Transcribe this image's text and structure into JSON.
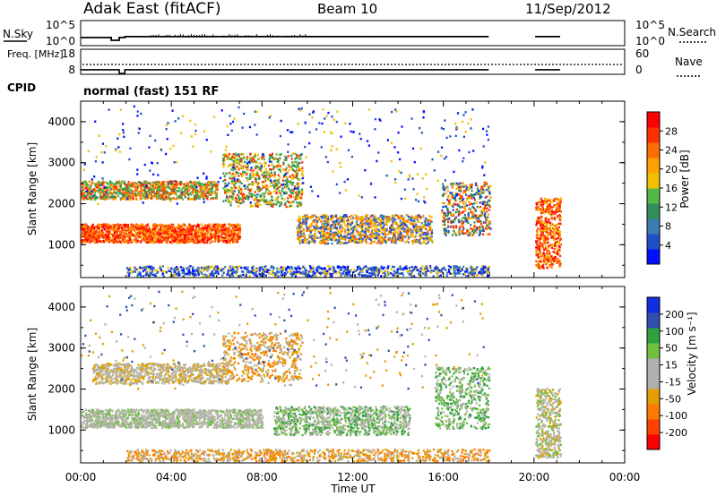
{
  "header": {
    "station": "Adak East (fitACF)",
    "beam": "Beam 10",
    "date": "11/Sep/2012",
    "cpid_label": "CPID",
    "cpid_value": "normal (fast) 151 RF"
  },
  "colors": {
    "power_scale": [
      "#0010ff",
      "#2050c8",
      "#3b7db0",
      "#2e8f5a",
      "#52b848",
      "#f0c000",
      "#ffa000",
      "#ff6c00",
      "#ff3000",
      "#ff0000"
    ],
    "velocity_scale": [
      "#ff0000",
      "#ff4000",
      "#ff7a00",
      "#e0a000",
      "#b0b0b0",
      "#b0b0b0",
      "#70c040",
      "#30a040",
      "#3050b0",
      "#1030e0"
    ],
    "ground_scatter": "#b4b4aa",
    "line": "#000000"
  },
  "chart_data": [
    {
      "type": "line",
      "panel": "N.Sky / N.Search noise",
      "left_label": "N.Sky",
      "right_label": "N.Search",
      "left_ticks": [
        "10^5",
        "10^0"
      ],
      "right_ticks": [
        "10^5",
        "10^0"
      ],
      "x_unit": "hours UT",
      "segments": [
        {
          "x": [
            0.0,
            1.35,
            1.35,
            1.7,
            1.7,
            1.95,
            1.95,
            18.0
          ],
          "y": [
            1.2,
            1.2,
            0.3,
            0.3,
            1.2,
            1.2,
            1.5,
            1.5
          ]
        },
        {
          "x": [
            20.05,
            21.15
          ],
          "y": [
            1.5,
            1.5
          ]
        }
      ]
    },
    {
      "type": "line",
      "panel": "Freq / Nave",
      "left_label": "Freq. [MHz]",
      "right_label": "Nave",
      "left_ticks": [
        "18",
        "8"
      ],
      "right_ticks": [
        "60",
        "0"
      ],
      "segments": [
        {
          "x": [
            0.0,
            1.7,
            1.7,
            1.95,
            1.95,
            18.0
          ],
          "y": [
            10.3,
            10.3,
            8,
            8,
            10.3,
            10.3
          ]
        },
        {
          "x": [
            20.05,
            21.15
          ],
          "y": [
            10.3,
            10.3
          ]
        }
      ]
    },
    {
      "type": "heatmap",
      "panel": "Power",
      "ylabel": "Slant Range [km]",
      "xlabel": "Time UT",
      "ylim": [
        200,
        4500
      ],
      "y_ticks": [
        "1000",
        "2000",
        "3000",
        "4000"
      ],
      "x_ticks": [
        "00:00",
        "04:00",
        "08:00",
        "12:00",
        "16:00",
        "20:00",
        "00:00"
      ],
      "colorbar_label": "Power [dB]",
      "colorbar_ticks": [
        "4",
        "8",
        "12",
        "16",
        "20",
        "24",
        "28"
      ]
    },
    {
      "type": "heatmap",
      "panel": "Velocity",
      "ylabel": "Slant Range [km]",
      "xlabel": "Time UT",
      "ylim": [
        200,
        4500
      ],
      "y_ticks": [
        "1000",
        "2000",
        "3000",
        "4000"
      ],
      "x_ticks": [
        "00:00",
        "04:00",
        "08:00",
        "12:00",
        "16:00",
        "20:00",
        "00:00"
      ],
      "colorbar_label": "Velocity [m s⁻¹]",
      "colorbar_ticks": [
        "200",
        "100",
        "50",
        "15",
        "-15",
        "-50",
        "-100",
        "-200"
      ]
    }
  ]
}
